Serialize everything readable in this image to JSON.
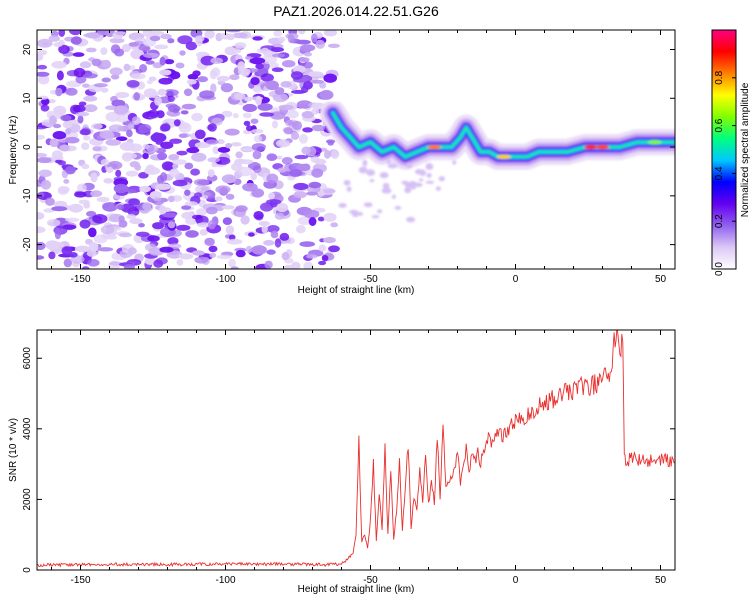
{
  "page_title": "PAZ1.2026.014.22.51.G26",
  "chart_data": [
    {
      "type": "heatmap",
      "title": "PAZ1.2026.014.22.51.G26",
      "xlabel": "Height of straight line (km)",
      "ylabel": "Frequency (Hz)",
      "xlim": [
        -165,
        55
      ],
      "ylim": [
        -25,
        24
      ],
      "x_ticks": [
        -150,
        -100,
        -50,
        0,
        50
      ],
      "y_ticks": [
        -20,
        -10,
        0,
        10,
        20
      ],
      "noise_region_x": [
        -165,
        -62
      ],
      "ridge": {
        "x": [
          -63,
          -60,
          -57,
          -54,
          -50,
          -46,
          -42,
          -38,
          -34,
          -30,
          -26,
          -22,
          -19,
          -17,
          -15,
          -12,
          -9,
          -6,
          -3,
          0,
          4,
          8,
          12,
          18,
          24,
          30,
          36,
          42,
          48,
          55
        ],
        "freq": [
          7,
          4,
          2,
          0,
          1,
          -1,
          0,
          -2,
          -1,
          0,
          0,
          0,
          2,
          4,
          2,
          -1,
          -1,
          -2,
          -2,
          -2,
          -2,
          -1,
          -1,
          -1,
          0,
          0,
          0,
          1,
          1,
          1
        ]
      },
      "colorbar": {
        "label": "Normalized spectral amplitude",
        "range": [
          0,
          1
        ],
        "ticks": [
          0.0,
          0.2,
          0.4,
          0.6,
          0.8
        ],
        "colors": [
          "#ffffff",
          "#dcc8f5",
          "#9060f0",
          "#6400f0",
          "#0000ff",
          "#00c8ff",
          "#00ff80",
          "#80ff00",
          "#ffff00",
          "#ff8000",
          "#ff0000",
          "#ff0080"
        ]
      }
    },
    {
      "type": "line",
      "xlabel": "Height of straight line (km)",
      "ylabel": "SNR (10 * v/v)",
      "xlim": [
        -165,
        55
      ],
      "ylim": [
        0,
        6800
      ],
      "x_ticks": [
        -150,
        -100,
        -50,
        0,
        50
      ],
      "y_ticks": [
        0,
        2000,
        4000,
        6000
      ],
      "series": [
        {
          "name": "SNR",
          "color": "#e8302e",
          "x": [
            -165,
            -150,
            -130,
            -110,
            -90,
            -75,
            -65,
            -60,
            -58,
            -56,
            -55,
            -54,
            -53,
            -52,
            -51,
            -50,
            -49,
            -48,
            -47,
            -46,
            -45,
            -44,
            -43,
            -42,
            -41,
            -40,
            -39,
            -38,
            -37,
            -36,
            -35,
            -34,
            -33,
            -32,
            -31,
            -30,
            -29,
            -28,
            -27,
            -26,
            -25,
            -24,
            -23,
            -22,
            -21,
            -20,
            -19,
            -18,
            -17,
            -16,
            -15,
            -14,
            -13,
            -12,
            -11,
            -10,
            -8,
            -6,
            -4,
            -2,
            0,
            4,
            8,
            12,
            16,
            20,
            24,
            28,
            32,
            33,
            34,
            35,
            36,
            37,
            37.5,
            38,
            40,
            45,
            50,
            55
          ],
          "values": [
            140,
            150,
            160,
            160,
            170,
            160,
            150,
            170,
            280,
            500,
            1000,
            3700,
            800,
            1000,
            600,
            1400,
            3000,
            800,
            2100,
            1200,
            3400,
            1000,
            2800,
            900,
            1700,
            3100,
            1100,
            2400,
            3500,
            1200,
            2000,
            1600,
            3000,
            1800,
            3300,
            1900,
            2500,
            1900,
            3900,
            2000,
            4200,
            2300,
            2600,
            2500,
            2800,
            3500,
            2400,
            3000,
            3500,
            2800,
            3200,
            3100,
            3400,
            3000,
            3300,
            3800,
            3500,
            3900,
            3800,
            4000,
            4200,
            4400,
            4600,
            4800,
            5000,
            5100,
            5200,
            5300,
            5500,
            5300,
            6700,
            6500,
            6300,
            6400,
            3200,
            3100,
            3150,
            3100,
            3150,
            3050
          ]
        }
      ]
    }
  ]
}
